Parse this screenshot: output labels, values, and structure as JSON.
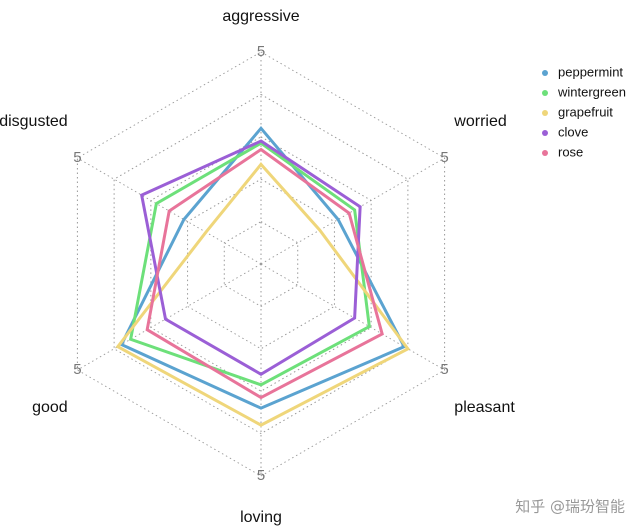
{
  "chart_data": {
    "type": "radar",
    "axes": [
      "aggressive",
      "worried",
      "pleasant",
      "loving",
      "good",
      "disgusted"
    ],
    "rlim": [
      0,
      5
    ],
    "rticks": [
      1,
      2,
      3,
      4,
      5
    ],
    "grid": true,
    "legend": "top-right",
    "series": [
      {
        "name": "peppermint",
        "color": "#5ba3d0",
        "values": [
          3.2,
          2.1,
          3.9,
          3.4,
          3.8,
          2.1
        ]
      },
      {
        "name": "wintergreen",
        "color": "#6de07a",
        "values": [
          2.85,
          2.55,
          2.95,
          2.85,
          3.55,
          2.85
        ]
      },
      {
        "name": "grapefruit",
        "color": "#efd67a",
        "values": [
          2.35,
          1.6,
          4.0,
          3.8,
          3.9,
          1.5
        ]
      },
      {
        "name": "clove",
        "color": "#9b5fd6",
        "values": [
          2.9,
          2.7,
          2.55,
          2.6,
          2.6,
          3.25
        ]
      },
      {
        "name": "rose",
        "color": "#e8749a",
        "values": [
          2.7,
          2.4,
          3.3,
          3.15,
          3.1,
          2.5
        ]
      }
    ]
  },
  "watermark": "知乎 @瑞玢智能"
}
